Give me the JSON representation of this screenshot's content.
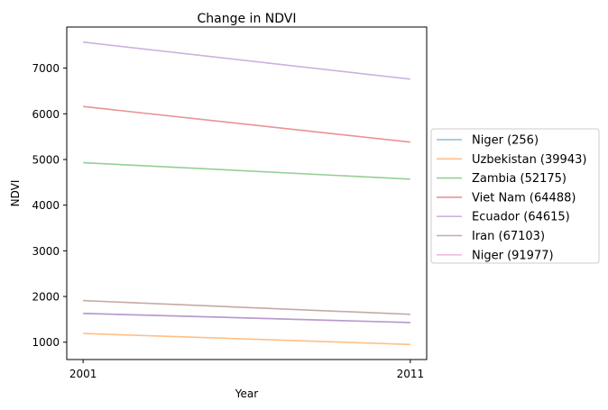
{
  "chart_data": {
    "type": "line",
    "title": "Change in NDVI",
    "xlabel": "Year",
    "ylabel": "NDVI",
    "x": [
      2001,
      2011
    ],
    "x_tick_labels": [
      "2001",
      "2011"
    ],
    "y_ticks": [
      1000,
      2000,
      3000,
      4000,
      5000,
      6000,
      7000
    ],
    "y_tick_labels": [
      "1000",
      "2000",
      "3000",
      "4000",
      "5000",
      "6000",
      "7000"
    ],
    "xlim": [
      2000.5,
      2011.5
    ],
    "ylim": [
      620,
      7900
    ],
    "grid": false,
    "legend_placement": "outside right",
    "series": [
      {
        "name": "Niger (256)",
        "color": "#1f77b4",
        "values": [
          1630,
          1430
        ]
      },
      {
        "name": "Uzbekistan (39943)",
        "color": "#ff7f0e",
        "values": [
          1190,
          950
        ]
      },
      {
        "name": "Zambia (52175)",
        "color": "#2ca02c",
        "values": [
          4930,
          4570
        ]
      },
      {
        "name": "Viet Nam (64488)",
        "color": "#d62728",
        "values": [
          6160,
          5380
        ]
      },
      {
        "name": "Ecuador (64615)",
        "color": "#9467bd",
        "values": [
          7570,
          6760
        ]
      },
      {
        "name": "Iran (67103)",
        "color": "#8c564b",
        "values": [
          1910,
          1610
        ]
      },
      {
        "name": "Niger (91977)",
        "color": "#e377c2",
        "values": [
          1630,
          1430
        ]
      }
    ]
  }
}
